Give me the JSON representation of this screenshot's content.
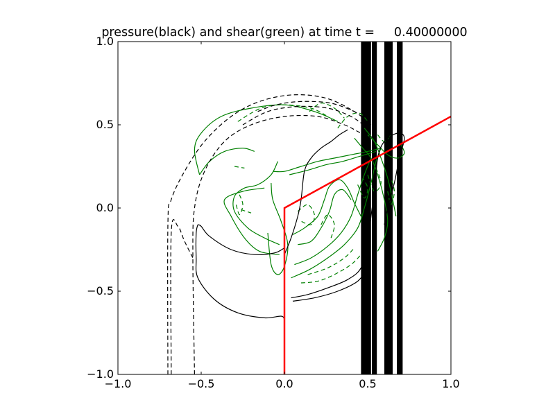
{
  "chart_data": {
    "type": "contour",
    "title": "pressure(black) and shear(green) at time t =     0.40000000",
    "xlabel": "",
    "ylabel": "",
    "xlim": [
      -1.0,
      1.0
    ],
    "ylim": [
      -1.0,
      1.0
    ],
    "xticks": [
      -1.0,
      -0.5,
      0.0,
      0.5,
      1.0
    ],
    "xtick_labels": [
      "−1.0",
      "−0.5",
      "0.0",
      "0.5",
      "1.0"
    ],
    "yticks": [
      -1.0,
      -0.5,
      0.0,
      0.5,
      1.0
    ],
    "ytick_labels": [
      "−1.0",
      "−0.5",
      "0.0",
      "0.5",
      "1.0"
    ],
    "grid": false,
    "colors": {
      "pressure": "#000000",
      "shear": "#008000",
      "interface": "#ff0000"
    },
    "interface_line": [
      [
        0.0,
        -1.0
      ],
      [
        0.0,
        0.0
      ],
      [
        1.0,
        0.55
      ]
    ],
    "pressure_contours": [
      {
        "style": "dashed",
        "points": [
          [
            -0.7,
            -1.0
          ],
          [
            -0.7,
            -0.1
          ],
          [
            -0.68,
            0.05
          ],
          [
            -0.6,
            0.22
          ],
          [
            -0.48,
            0.4
          ],
          [
            -0.32,
            0.55
          ],
          [
            -0.15,
            0.64
          ],
          [
            0.05,
            0.68
          ],
          [
            0.25,
            0.66
          ],
          [
            0.42,
            0.58
          ],
          [
            0.52,
            0.5
          ]
        ]
      },
      {
        "style": "dashed",
        "points": [
          [
            -0.68,
            -1.0
          ],
          [
            -0.68,
            -0.15
          ],
          [
            -0.64,
            -0.11
          ],
          [
            -0.6,
            -0.2
          ],
          [
            -0.55,
            -0.3
          ]
        ]
      },
      {
        "style": "dashed",
        "points": [
          [
            -0.54,
            -1.0
          ],
          [
            -0.55,
            -0.3
          ],
          [
            -0.54,
            0.0
          ],
          [
            -0.48,
            0.22
          ],
          [
            -0.36,
            0.4
          ],
          [
            -0.2,
            0.5
          ],
          [
            0.0,
            0.55
          ],
          [
            0.2,
            0.55
          ],
          [
            0.36,
            0.5
          ],
          [
            0.46,
            0.45
          ],
          [
            0.54,
            0.42
          ]
        ]
      },
      {
        "style": "dashed",
        "points": [
          [
            -0.25,
            0.5
          ],
          [
            -0.1,
            0.58
          ],
          [
            0.08,
            0.61
          ],
          [
            0.26,
            0.6
          ],
          [
            0.4,
            0.55
          ],
          [
            0.5,
            0.48
          ]
        ]
      },
      {
        "style": "dashed",
        "points": [
          [
            -0.16,
            0.58
          ],
          [
            -0.05,
            0.62
          ],
          [
            0.1,
            0.64
          ],
          [
            0.28,
            0.63
          ],
          [
            0.42,
            0.58
          ]
        ]
      },
      {
        "style": "solid",
        "points": [
          [
            -0.52,
            -0.1
          ],
          [
            -0.5,
            -0.11
          ],
          [
            -0.45,
            -0.17
          ],
          [
            -0.32,
            -0.25
          ],
          [
            -0.18,
            -0.28
          ],
          [
            -0.06,
            -0.27
          ],
          [
            0.0,
            -0.24
          ]
        ]
      },
      {
        "style": "solid",
        "points": [
          [
            -0.52,
            -0.1
          ],
          [
            -0.53,
            -0.15
          ],
          [
            -0.53,
            -0.3
          ],
          [
            -0.52,
            -0.42
          ],
          [
            -0.42,
            -0.55
          ],
          [
            -0.28,
            -0.63
          ],
          [
            -0.12,
            -0.66
          ],
          [
            -0.02,
            -0.65
          ],
          [
            0.0,
            -0.67
          ]
        ]
      },
      {
        "style": "solid",
        "points": [
          [
            0.0,
            -0.28
          ],
          [
            0.04,
            -0.18
          ],
          [
            0.08,
            -0.05
          ],
          [
            0.1,
            0.05
          ],
          [
            0.12,
            0.22
          ],
          [
            0.16,
            0.3
          ],
          [
            0.22,
            0.36
          ],
          [
            0.28,
            0.4
          ],
          [
            0.33,
            0.44
          ],
          [
            0.38,
            0.47
          ]
        ]
      },
      {
        "style": "solid",
        "points": [
          [
            0.04,
            -0.54
          ],
          [
            0.14,
            -0.52
          ],
          [
            0.26,
            -0.48
          ],
          [
            0.38,
            -0.43
          ],
          [
            0.46,
            -0.36
          ],
          [
            0.5,
            -0.22
          ],
          [
            0.52,
            -0.05
          ],
          [
            0.54,
            0.1
          ],
          [
            0.56,
            0.3
          ],
          [
            0.6,
            0.4
          ],
          [
            0.68,
            0.45
          ],
          [
            0.72,
            0.42
          ],
          [
            0.69,
            0.3
          ],
          [
            0.66,
            0.15
          ],
          [
            0.62,
            0.0
          ],
          [
            0.6,
            -0.1
          ]
        ]
      },
      {
        "style": "solid",
        "points": [
          [
            0.05,
            -0.56
          ],
          [
            0.18,
            -0.54
          ],
          [
            0.32,
            -0.5
          ],
          [
            0.44,
            -0.44
          ],
          [
            0.5,
            -0.36
          ]
        ]
      }
    ],
    "pressure_bands": [
      [
        0.46,
        0.52
      ],
      [
        0.6,
        0.65
      ],
      [
        0.525,
        0.555
      ],
      [
        0.675,
        0.71
      ]
    ],
    "shear_contours": [
      {
        "style": "solid",
        "points": [
          [
            -0.51,
            0.2
          ],
          [
            -0.54,
            0.35
          ],
          [
            -0.5,
            0.45
          ],
          [
            -0.38,
            0.55
          ],
          [
            -0.2,
            0.6
          ],
          [
            0.0,
            0.62
          ],
          [
            0.18,
            0.58
          ],
          [
            0.32,
            0.52
          ]
        ]
      },
      {
        "style": "solid",
        "points": [
          [
            -0.51,
            0.2
          ],
          [
            -0.45,
            0.28
          ],
          [
            -0.36,
            0.34
          ],
          [
            -0.25,
            0.36
          ],
          [
            -0.18,
            0.34
          ]
        ]
      },
      {
        "style": "solid",
        "points": [
          [
            -0.12,
            0.12
          ],
          [
            -0.25,
            0.1
          ],
          [
            -0.36,
            0.05
          ],
          [
            -0.32,
            -0.05
          ],
          [
            -0.24,
            -0.18
          ],
          [
            -0.15,
            -0.26
          ],
          [
            -0.03,
            -0.28
          ]
        ]
      },
      {
        "style": "solid",
        "points": [
          [
            -0.04,
            0.28
          ],
          [
            -0.08,
            0.2
          ],
          [
            -0.16,
            0.14
          ],
          [
            -0.24,
            0.12
          ],
          [
            -0.3,
            0.07
          ],
          [
            -0.3,
            -0.02
          ],
          [
            -0.22,
            -0.12
          ],
          [
            -0.12,
            -0.18
          ],
          [
            -0.03,
            -0.22
          ]
        ]
      },
      {
        "style": "solid",
        "points": [
          [
            -0.08,
            0.15
          ],
          [
            -0.07,
            0.05
          ],
          [
            -0.02,
            -0.08
          ],
          [
            0.02,
            -0.22
          ],
          [
            0.0,
            -0.35
          ],
          [
            -0.04,
            -0.4
          ],
          [
            -0.08,
            -0.34
          ],
          [
            -0.1,
            -0.15
          ]
        ]
      },
      {
        "style": "solid",
        "points": [
          [
            -0.07,
            0.22
          ],
          [
            0.0,
            0.22
          ],
          [
            0.1,
            0.25
          ],
          [
            0.2,
            0.28
          ],
          [
            0.3,
            0.3
          ],
          [
            0.4,
            0.32
          ],
          [
            0.5,
            0.34
          ],
          [
            0.58,
            0.36
          ]
        ]
      },
      {
        "style": "solid",
        "points": [
          [
            0.03,
            0.2
          ],
          [
            0.15,
            0.23
          ],
          [
            0.25,
            0.26
          ],
          [
            0.35,
            0.28
          ],
          [
            0.45,
            0.31
          ],
          [
            0.55,
            0.34
          ]
        ]
      },
      {
        "style": "solid",
        "points": [
          [
            0.05,
            -0.16
          ],
          [
            0.12,
            -0.12
          ],
          [
            0.2,
            -0.05
          ],
          [
            0.24,
            0.05
          ],
          [
            0.27,
            0.13
          ],
          [
            0.33,
            0.17
          ],
          [
            0.38,
            0.12
          ],
          [
            0.42,
            0.03
          ],
          [
            0.46,
            -0.05
          ]
        ]
      },
      {
        "style": "solid",
        "points": [
          [
            0.08,
            -0.22
          ],
          [
            0.16,
            -0.2
          ],
          [
            0.22,
            -0.12
          ],
          [
            0.27,
            -0.02
          ],
          [
            0.3,
            0.08
          ],
          [
            0.35,
            0.11
          ],
          [
            0.4,
            0.05
          ]
        ]
      },
      {
        "style": "solid",
        "points": [
          [
            0.04,
            -0.42
          ],
          [
            0.15,
            -0.37
          ],
          [
            0.26,
            -0.3
          ],
          [
            0.36,
            -0.22
          ],
          [
            0.44,
            -0.12
          ],
          [
            0.48,
            0.0
          ],
          [
            0.52,
            0.15
          ],
          [
            0.55,
            0.28
          ],
          [
            0.58,
            0.36
          ]
        ]
      },
      {
        "style": "solid",
        "points": [
          [
            0.06,
            -0.34
          ],
          [
            0.16,
            -0.3
          ],
          [
            0.26,
            -0.23
          ],
          [
            0.34,
            -0.15
          ],
          [
            0.4,
            -0.05
          ],
          [
            0.44,
            0.08
          ],
          [
            0.48,
            0.2
          ],
          [
            0.52,
            0.3
          ]
        ]
      },
      {
        "style": "solid",
        "points": [
          [
            0.42,
            0.42
          ],
          [
            0.47,
            0.36
          ],
          [
            0.52,
            0.3
          ],
          [
            0.56,
            0.2
          ],
          [
            0.6,
            0.05
          ],
          [
            0.62,
            -0.08
          ],
          [
            0.6,
            -0.18
          ],
          [
            0.56,
            -0.26
          ]
        ]
      },
      {
        "style": "solid",
        "points": [
          [
            0.48,
            0.48
          ],
          [
            0.54,
            0.4
          ],
          [
            0.58,
            0.3
          ],
          [
            0.62,
            0.18
          ],
          [
            0.65,
            0.05
          ],
          [
            0.67,
            -0.05
          ]
        ]
      },
      {
        "style": "solid",
        "points": [
          [
            0.5,
            0.44
          ],
          [
            0.56,
            0.38
          ],
          [
            0.62,
            0.32
          ],
          [
            0.68,
            0.3
          ],
          [
            0.72,
            0.33
          ],
          [
            0.7,
            0.38
          ]
        ]
      },
      {
        "style": "dashed",
        "points": [
          [
            -0.28,
            0.52
          ],
          [
            -0.14,
            0.6
          ],
          [
            0.0,
            0.62
          ],
          [
            0.16,
            0.6
          ],
          [
            0.26,
            0.55
          ]
        ]
      },
      {
        "style": "dashed",
        "points": [
          [
            0.15,
            0.58
          ],
          [
            0.22,
            0.63
          ],
          [
            0.3,
            0.6
          ],
          [
            0.36,
            0.54
          ]
        ]
      },
      {
        "style": "dashed",
        "points": [
          [
            0.32,
            0.48
          ],
          [
            0.38,
            0.55
          ],
          [
            0.45,
            0.57
          ],
          [
            0.5,
            0.52
          ]
        ]
      },
      {
        "style": "dashed",
        "points": [
          [
            -0.27,
            0.08
          ],
          [
            -0.25,
            0.02
          ],
          [
            -0.27,
            -0.04
          ],
          [
            -0.29,
            0.02
          ]
        ]
      },
      {
        "style": "dashed",
        "points": [
          [
            -0.26,
            -0.01
          ],
          [
            -0.2,
            -0.03
          ]
        ]
      },
      {
        "style": "dashed",
        "points": [
          [
            -0.3,
            0.25
          ],
          [
            -0.24,
            0.24
          ]
        ]
      },
      {
        "style": "dashed",
        "points": [
          [
            0.08,
            -0.02
          ],
          [
            0.14,
            0.02
          ],
          [
            0.18,
            -0.04
          ],
          [
            0.16,
            -0.1
          ],
          [
            0.1,
            -0.08
          ]
        ]
      },
      {
        "style": "dashed",
        "points": [
          [
            0.22,
            -0.1
          ],
          [
            0.26,
            -0.04
          ],
          [
            0.3,
            -0.1
          ],
          [
            0.28,
            -0.18
          ]
        ]
      },
      {
        "style": "dashed",
        "points": [
          [
            0.1,
            -0.45
          ],
          [
            0.2,
            -0.44
          ],
          [
            0.3,
            -0.4
          ],
          [
            0.4,
            -0.34
          ],
          [
            0.46,
            -0.28
          ]
        ]
      },
      {
        "style": "dashed",
        "points": [
          [
            0.14,
            -0.4
          ],
          [
            0.26,
            -0.36
          ],
          [
            0.36,
            -0.3
          ],
          [
            0.42,
            -0.24
          ]
        ]
      },
      {
        "style": "dashed",
        "points": [
          [
            0.44,
            0.14
          ],
          [
            0.48,
            0.06
          ],
          [
            0.5,
            0.12
          ],
          [
            0.47,
            0.18
          ]
        ]
      },
      {
        "style": "dashed",
        "points": [
          [
            0.5,
            0.2
          ],
          [
            0.54,
            0.1
          ],
          [
            0.58,
            0.15
          ],
          [
            0.55,
            0.24
          ]
        ]
      },
      {
        "style": "dashed",
        "points": [
          [
            0.62,
            0.1
          ],
          [
            0.64,
            0.02
          ],
          [
            0.66,
            0.1
          ],
          [
            0.64,
            0.18
          ]
        ]
      },
      {
        "style": "dashed",
        "points": [
          [
            0.56,
            0.44
          ],
          [
            0.6,
            0.4
          ],
          [
            0.64,
            0.44
          ]
        ]
      }
    ]
  }
}
